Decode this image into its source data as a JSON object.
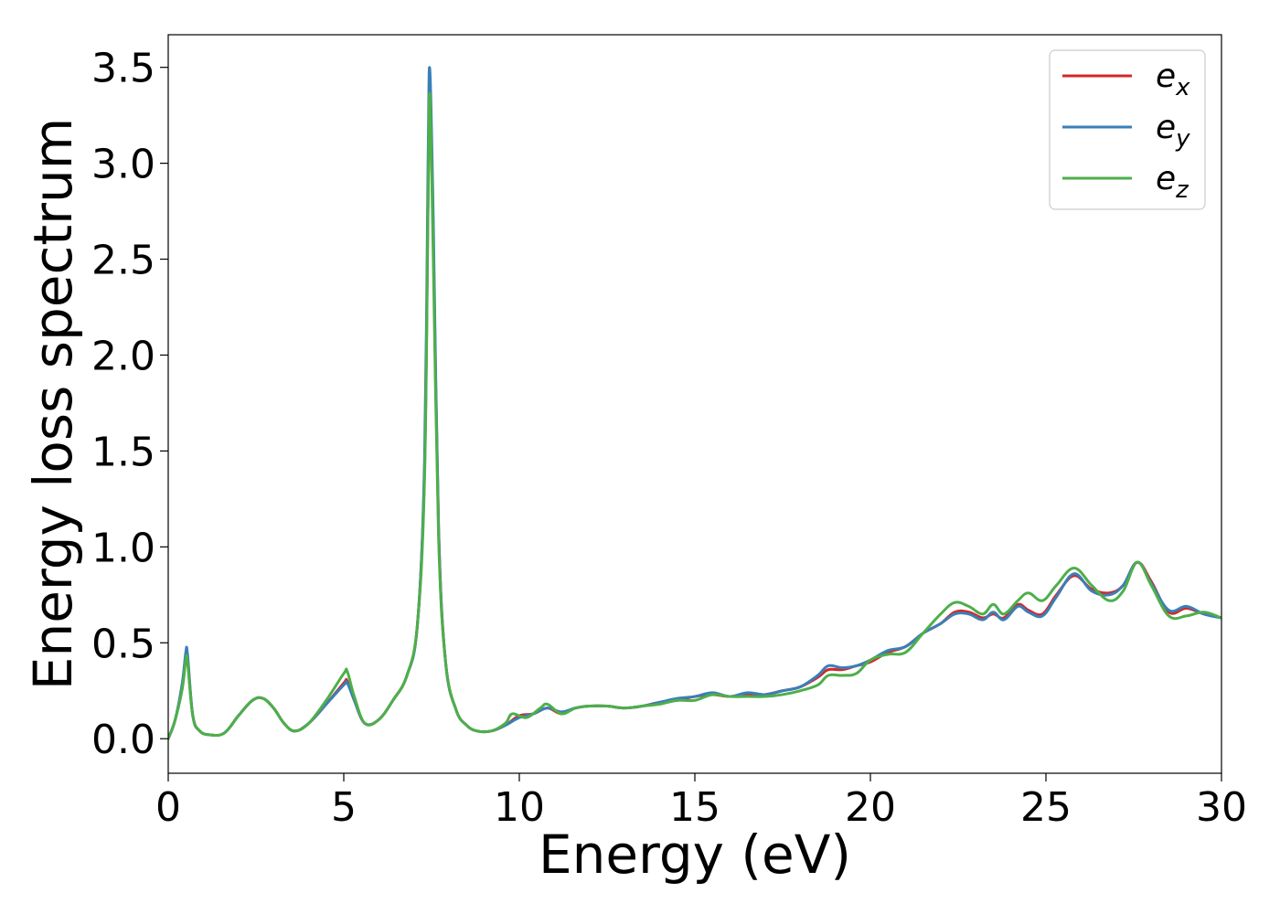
{
  "chart_data": {
    "type": "line",
    "xlabel": "Energy (eV)",
    "ylabel": "Energy loss spectrum",
    "xlim": [
      0,
      30
    ],
    "ylim": [
      -0.18,
      3.67
    ],
    "xticks": [
      0,
      5,
      10,
      15,
      20,
      25,
      30
    ],
    "xtick_labels": [
      "0",
      "5",
      "10",
      "15",
      "20",
      "25",
      "30"
    ],
    "yticks": [
      0.0,
      0.5,
      1.0,
      1.5,
      2.0,
      2.5,
      3.0,
      3.5
    ],
    "ytick_labels": [
      "0.0",
      "0.5",
      "1.0",
      "1.5",
      "2.0",
      "2.5",
      "3.0",
      "3.5"
    ],
    "grid": false,
    "legend_placement": "top-right",
    "legend": [
      {
        "base": "e",
        "sub": "x",
        "color": "#d62728"
      },
      {
        "base": "e",
        "sub": "y",
        "color": "#3a7fb8"
      },
      {
        "base": "e",
        "sub": "z",
        "color": "#4daf4a"
      }
    ],
    "series": [
      {
        "color": "#d62728",
        "x": [
          0,
          0.2,
          0.4,
          0.5,
          0.55,
          0.7,
          0.9,
          1.2,
          1.6,
          2.0,
          2.4,
          2.7,
          3.0,
          3.3,
          3.6,
          4.0,
          4.5,
          5.0,
          5.1,
          5.3,
          5.6,
          6.0,
          6.4,
          6.8,
          7.1,
          7.3,
          7.4,
          7.45,
          7.55,
          7.7,
          7.9,
          8.2,
          8.5,
          8.8,
          9.2,
          9.6,
          10.0,
          10.4,
          10.8,
          11.2,
          11.6,
          12.0,
          12.5,
          13.0,
          13.5,
          14.0,
          14.5,
          15.0,
          15.5,
          16.0,
          16.5,
          17.0,
          17.5,
          18.0,
          18.5,
          18.8,
          19.2,
          19.6,
          20.0,
          20.5,
          21.0,
          21.5,
          22.0,
          22.4,
          22.8,
          23.2,
          23.5,
          23.8,
          24.2,
          24.5,
          24.9,
          25.3,
          25.8,
          26.3,
          26.8,
          27.2,
          27.6,
          28.0,
          28.5,
          29.0,
          29.5,
          30.0
        ],
        "y": [
          0.0,
          0.1,
          0.28,
          0.43,
          0.42,
          0.12,
          0.04,
          0.02,
          0.03,
          0.12,
          0.2,
          0.21,
          0.16,
          0.08,
          0.04,
          0.08,
          0.18,
          0.29,
          0.3,
          0.2,
          0.08,
          0.1,
          0.2,
          0.33,
          0.6,
          1.4,
          2.8,
          3.38,
          2.6,
          1.1,
          0.4,
          0.15,
          0.07,
          0.04,
          0.04,
          0.07,
          0.12,
          0.13,
          0.16,
          0.13,
          0.16,
          0.17,
          0.17,
          0.16,
          0.17,
          0.19,
          0.2,
          0.22,
          0.23,
          0.22,
          0.23,
          0.23,
          0.25,
          0.27,
          0.32,
          0.36,
          0.36,
          0.38,
          0.4,
          0.45,
          0.48,
          0.55,
          0.6,
          0.66,
          0.66,
          0.63,
          0.65,
          0.63,
          0.7,
          0.67,
          0.65,
          0.75,
          0.85,
          0.78,
          0.76,
          0.8,
          0.92,
          0.82,
          0.66,
          0.68,
          0.65,
          0.63
        ]
      },
      {
        "color": "#3a7fb8",
        "x": [
          0,
          0.2,
          0.4,
          0.5,
          0.55,
          0.7,
          0.9,
          1.2,
          1.6,
          2.0,
          2.4,
          2.7,
          3.0,
          3.3,
          3.6,
          4.0,
          4.5,
          5.0,
          5.1,
          5.3,
          5.6,
          6.0,
          6.4,
          6.8,
          7.1,
          7.3,
          7.4,
          7.45,
          7.55,
          7.7,
          7.9,
          8.2,
          8.5,
          8.8,
          9.2,
          9.6,
          10.0,
          10.4,
          10.8,
          11.2,
          11.6,
          12.0,
          12.5,
          13.0,
          13.5,
          14.0,
          14.5,
          15.0,
          15.5,
          16.0,
          16.5,
          17.0,
          17.5,
          18.0,
          18.5,
          18.8,
          19.2,
          19.6,
          20.0,
          20.5,
          21.0,
          21.5,
          22.0,
          22.4,
          22.8,
          23.2,
          23.5,
          23.8,
          24.2,
          24.5,
          24.9,
          25.3,
          25.8,
          26.3,
          26.8,
          27.2,
          27.6,
          28.0,
          28.5,
          29.0,
          29.5,
          30.0
        ],
        "y": [
          0.0,
          0.1,
          0.29,
          0.45,
          0.44,
          0.12,
          0.04,
          0.02,
          0.03,
          0.12,
          0.2,
          0.21,
          0.16,
          0.08,
          0.04,
          0.08,
          0.18,
          0.28,
          0.29,
          0.2,
          0.08,
          0.1,
          0.2,
          0.33,
          0.6,
          1.45,
          3.0,
          3.49,
          2.7,
          1.1,
          0.4,
          0.15,
          0.07,
          0.04,
          0.04,
          0.07,
          0.11,
          0.13,
          0.16,
          0.14,
          0.16,
          0.17,
          0.17,
          0.16,
          0.17,
          0.19,
          0.21,
          0.22,
          0.24,
          0.22,
          0.24,
          0.23,
          0.25,
          0.27,
          0.33,
          0.38,
          0.37,
          0.38,
          0.41,
          0.46,
          0.48,
          0.55,
          0.6,
          0.65,
          0.65,
          0.62,
          0.66,
          0.62,
          0.69,
          0.66,
          0.64,
          0.74,
          0.86,
          0.77,
          0.75,
          0.8,
          0.92,
          0.81,
          0.67,
          0.69,
          0.65,
          0.63
        ]
      },
      {
        "color": "#4daf4a",
        "x": [
          0,
          0.2,
          0.4,
          0.5,
          0.55,
          0.7,
          0.9,
          1.2,
          1.6,
          2.0,
          2.4,
          2.7,
          3.0,
          3.3,
          3.6,
          4.0,
          4.5,
          5.0,
          5.1,
          5.3,
          5.6,
          6.0,
          6.4,
          6.8,
          7.1,
          7.3,
          7.4,
          7.45,
          7.55,
          7.7,
          7.9,
          8.2,
          8.5,
          8.8,
          9.2,
          9.6,
          9.8,
          10.2,
          10.6,
          10.8,
          11.2,
          11.6,
          12.0,
          12.5,
          13.0,
          13.5,
          14.0,
          14.5,
          15.0,
          15.5,
          16.0,
          16.5,
          17.0,
          17.5,
          18.0,
          18.5,
          18.8,
          19.2,
          19.6,
          20.0,
          20.5,
          21.0,
          21.5,
          22.0,
          22.4,
          22.8,
          23.2,
          23.5,
          23.8,
          24.2,
          24.5,
          24.9,
          25.3,
          25.8,
          26.3,
          26.8,
          27.2,
          27.6,
          28.0,
          28.5,
          29.0,
          29.5,
          30.0
        ],
        "y": [
          0.0,
          0.1,
          0.26,
          0.41,
          0.4,
          0.12,
          0.04,
          0.02,
          0.03,
          0.12,
          0.2,
          0.21,
          0.16,
          0.08,
          0.04,
          0.08,
          0.2,
          0.34,
          0.35,
          0.22,
          0.08,
          0.1,
          0.2,
          0.33,
          0.6,
          1.35,
          2.75,
          3.36,
          2.5,
          1.05,
          0.4,
          0.15,
          0.07,
          0.04,
          0.04,
          0.08,
          0.13,
          0.11,
          0.16,
          0.18,
          0.13,
          0.16,
          0.17,
          0.17,
          0.16,
          0.17,
          0.18,
          0.2,
          0.2,
          0.23,
          0.22,
          0.22,
          0.22,
          0.23,
          0.25,
          0.28,
          0.33,
          0.33,
          0.34,
          0.41,
          0.44,
          0.45,
          0.55,
          0.65,
          0.71,
          0.69,
          0.65,
          0.7,
          0.65,
          0.72,
          0.76,
          0.72,
          0.8,
          0.89,
          0.8,
          0.72,
          0.77,
          0.92,
          0.8,
          0.64,
          0.64,
          0.66,
          0.63
        ]
      }
    ]
  }
}
